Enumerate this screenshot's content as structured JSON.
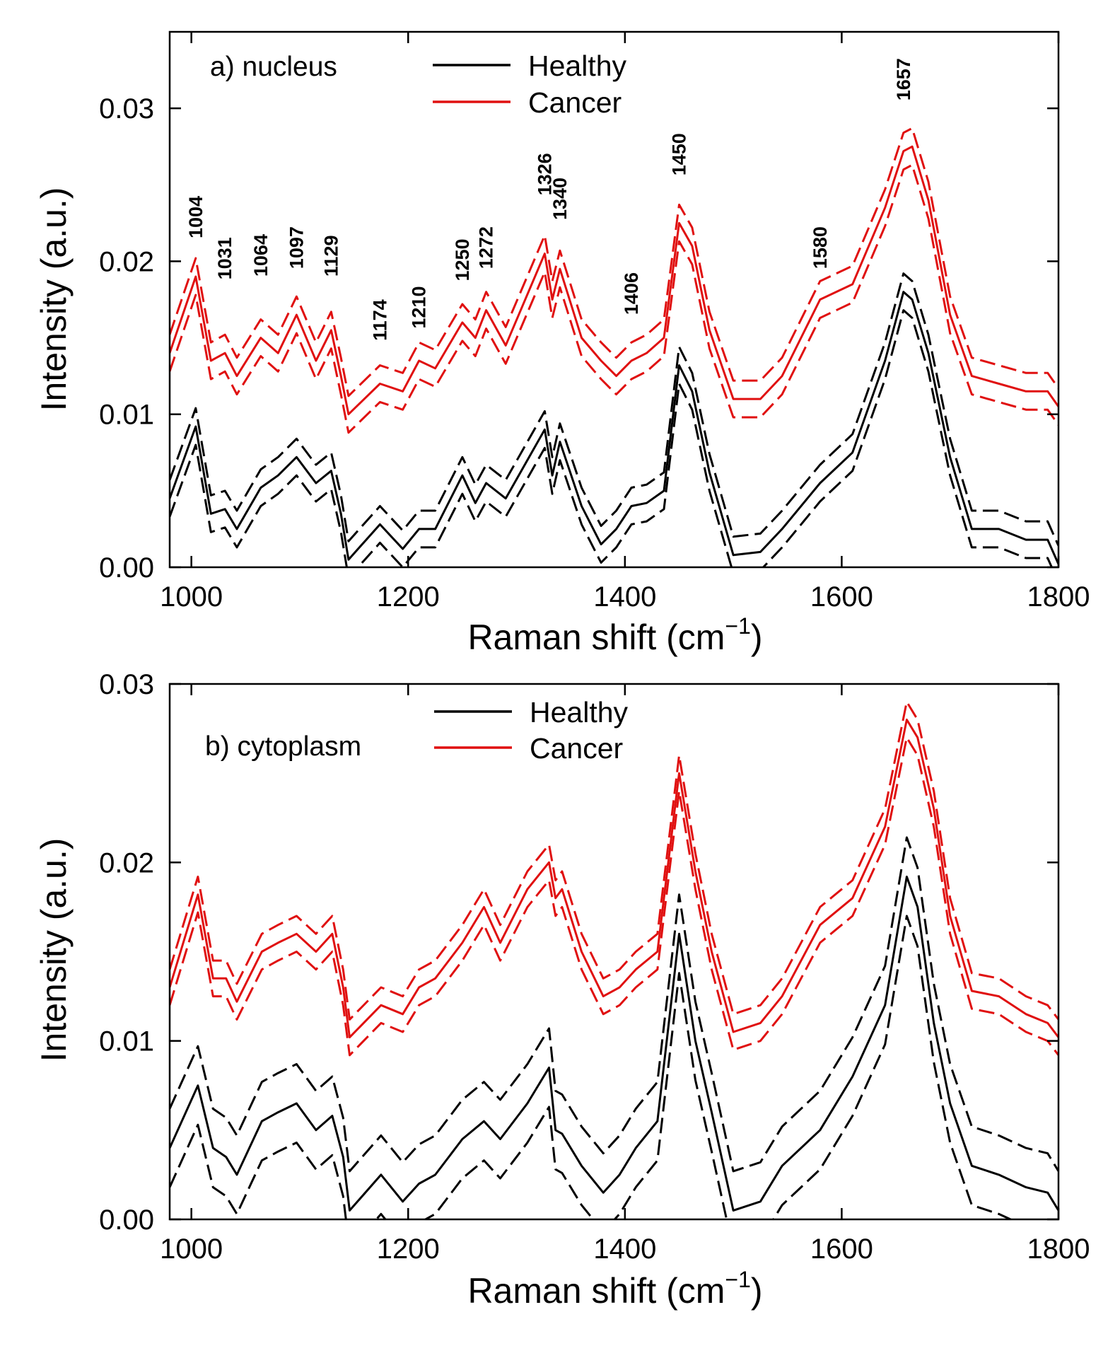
{
  "chart_data": [
    {
      "type": "line",
      "panel_label": "a) nucleus",
      "xlabel": "Raman shift (cm",
      "xlabel_sup": "−1",
      "xlabel_close": ")",
      "ylabel": "Intensity (a.u.)",
      "xlim": [
        980,
        1800
      ],
      "ylim": [
        0.0,
        0.035
      ],
      "xticks": [
        1000,
        1200,
        1400,
        1600,
        1800
      ],
      "xtick_labels": [
        "1000",
        "1200",
        "1400",
        "1600",
        "1800"
      ],
      "yticks": [
        0.0,
        0.01,
        0.02,
        0.03
      ],
      "ytick_labels": [
        "0.00",
        "0.01",
        "0.02",
        "0.03"
      ],
      "legend": [
        {
          "label": "Healthy",
          "color": "#000000"
        },
        {
          "label": "Cancer",
          "color": "#e01010"
        }
      ],
      "peak_labels": [
        "1004",
        "1031",
        "1064",
        "1097",
        "1129",
        "1174",
        "1210",
        "1250",
        "1272",
        "1326",
        "1340",
        "1406",
        "1450",
        "1580",
        "1657"
      ],
      "peak_positions": [
        1004,
        1031,
        1064,
        1097,
        1129,
        1174,
        1210,
        1250,
        1272,
        1326,
        1340,
        1406,
        1450,
        1580,
        1657
      ],
      "peak_label_y": [
        0.0215,
        0.0188,
        0.019,
        0.0195,
        0.019,
        0.0148,
        0.0156,
        0.0187,
        0.0195,
        0.0243,
        0.0227,
        0.0165,
        0.0256,
        0.0195,
        0.0305
      ],
      "band_offset": 0.0012,
      "series": [
        {
          "name": "Healthy",
          "color": "#000000",
          "x": [
            980,
            1004,
            1018,
            1031,
            1042,
            1064,
            1080,
            1097,
            1115,
            1129,
            1138,
            1145,
            1174,
            1195,
            1210,
            1225,
            1250,
            1262,
            1272,
            1290,
            1326,
            1333,
            1340,
            1360,
            1378,
            1392,
            1406,
            1420,
            1436,
            1450,
            1462,
            1478,
            1500,
            1525,
            1545,
            1580,
            1610,
            1640,
            1657,
            1665,
            1680,
            1700,
            1720,
            1745,
            1770,
            1790,
            1800
          ],
          "y": [
            0.0045,
            0.0092,
            0.0035,
            0.0038,
            0.0025,
            0.0052,
            0.006,
            0.0072,
            0.0055,
            0.0063,
            0.0035,
            0.0005,
            0.0028,
            0.0012,
            0.0025,
            0.0025,
            0.006,
            0.0042,
            0.0055,
            0.0045,
            0.009,
            0.006,
            0.0082,
            0.004,
            0.0015,
            0.0025,
            0.004,
            0.0042,
            0.005,
            0.0132,
            0.0115,
            0.0062,
            0.0008,
            0.001,
            0.0025,
            0.0055,
            0.0075,
            0.0135,
            0.018,
            0.0175,
            0.014,
            0.0072,
            0.0025,
            0.0025,
            0.0018,
            0.0018,
            0.0002
          ]
        },
        {
          "name": "Cancer",
          "color": "#e01010",
          "x": [
            980,
            1004,
            1018,
            1031,
            1042,
            1064,
            1080,
            1097,
            1115,
            1129,
            1138,
            1145,
            1174,
            1195,
            1210,
            1225,
            1250,
            1262,
            1272,
            1290,
            1326,
            1333,
            1340,
            1360,
            1378,
            1392,
            1406,
            1420,
            1436,
            1450,
            1462,
            1478,
            1500,
            1525,
            1545,
            1580,
            1610,
            1640,
            1657,
            1665,
            1680,
            1700,
            1720,
            1745,
            1770,
            1790,
            1800
          ],
          "y": [
            0.014,
            0.019,
            0.0135,
            0.014,
            0.0125,
            0.015,
            0.014,
            0.0165,
            0.0135,
            0.0155,
            0.0125,
            0.01,
            0.012,
            0.0115,
            0.0135,
            0.013,
            0.016,
            0.015,
            0.0168,
            0.0145,
            0.0205,
            0.0175,
            0.0195,
            0.015,
            0.0135,
            0.0125,
            0.0135,
            0.014,
            0.015,
            0.0225,
            0.021,
            0.0155,
            0.011,
            0.011,
            0.0125,
            0.0175,
            0.0185,
            0.0235,
            0.0272,
            0.0275,
            0.024,
            0.0165,
            0.0125,
            0.012,
            0.0115,
            0.0115,
            0.0105
          ]
        }
      ]
    },
    {
      "type": "line",
      "panel_label": "b) cytoplasm",
      "xlabel": "Raman shift (cm",
      "xlabel_sup": "−1",
      "xlabel_close": ")",
      "ylabel": "Intensity (a.u.)",
      "xlim": [
        980,
        1800
      ],
      "ylim": [
        0.0,
        0.03
      ],
      "xticks": [
        1000,
        1200,
        1400,
        1600,
        1800
      ],
      "xtick_labels": [
        "1000",
        "1200",
        "1400",
        "1600",
        "1800"
      ],
      "yticks": [
        0.0,
        0.01,
        0.02,
        0.03
      ],
      "ytick_labels": [
        "0.00",
        "0.01",
        "0.02",
        "0.03"
      ],
      "legend": [
        {
          "label": "Healthy",
          "color": "#000000"
        },
        {
          "label": "Cancer",
          "color": "#e01010"
        }
      ],
      "band_offset_healthy": 0.0022,
      "band_offset_cancer": 0.001,
      "series": [
        {
          "name": "Healthy",
          "color": "#000000",
          "x": [
            980,
            1006,
            1020,
            1032,
            1042,
            1065,
            1080,
            1097,
            1115,
            1130,
            1140,
            1146,
            1175,
            1195,
            1210,
            1225,
            1250,
            1270,
            1285,
            1310,
            1330,
            1336,
            1342,
            1360,
            1380,
            1395,
            1410,
            1430,
            1450,
            1465,
            1480,
            1500,
            1525,
            1545,
            1580,
            1610,
            1640,
            1660,
            1670,
            1685,
            1700,
            1720,
            1745,
            1770,
            1790,
            1800
          ],
          "y": [
            0.004,
            0.0075,
            0.004,
            0.0035,
            0.0025,
            0.0055,
            0.006,
            0.0065,
            0.005,
            0.0058,
            0.0035,
            0.0005,
            0.0025,
            0.001,
            0.002,
            0.0025,
            0.0045,
            0.0055,
            0.0045,
            0.0065,
            0.0085,
            0.005,
            0.0048,
            0.003,
            0.0015,
            0.0025,
            0.004,
            0.0055,
            0.016,
            0.01,
            0.006,
            0.0005,
            0.001,
            0.003,
            0.005,
            0.008,
            0.012,
            0.0192,
            0.0175,
            0.011,
            0.0065,
            0.003,
            0.0025,
            0.0018,
            0.0015,
            0.0005
          ]
        },
        {
          "name": "Cancer",
          "color": "#e01010",
          "x": [
            980,
            1006,
            1020,
            1032,
            1042,
            1065,
            1080,
            1097,
            1115,
            1130,
            1140,
            1146,
            1175,
            1195,
            1210,
            1225,
            1250,
            1270,
            1285,
            1310,
            1330,
            1336,
            1342,
            1360,
            1380,
            1395,
            1410,
            1430,
            1450,
            1465,
            1480,
            1500,
            1525,
            1545,
            1580,
            1610,
            1640,
            1660,
            1670,
            1685,
            1700,
            1720,
            1745,
            1770,
            1790,
            1800
          ],
          "y": [
            0.013,
            0.0182,
            0.0135,
            0.0135,
            0.0122,
            0.015,
            0.0155,
            0.016,
            0.015,
            0.016,
            0.013,
            0.0102,
            0.012,
            0.0115,
            0.013,
            0.0135,
            0.0155,
            0.0175,
            0.0155,
            0.0185,
            0.02,
            0.018,
            0.0185,
            0.015,
            0.0125,
            0.013,
            0.014,
            0.015,
            0.025,
            0.0195,
            0.015,
            0.0105,
            0.011,
            0.0125,
            0.0165,
            0.018,
            0.022,
            0.028,
            0.027,
            0.023,
            0.017,
            0.0128,
            0.0125,
            0.0115,
            0.011,
            0.0102
          ]
        }
      ]
    }
  ]
}
